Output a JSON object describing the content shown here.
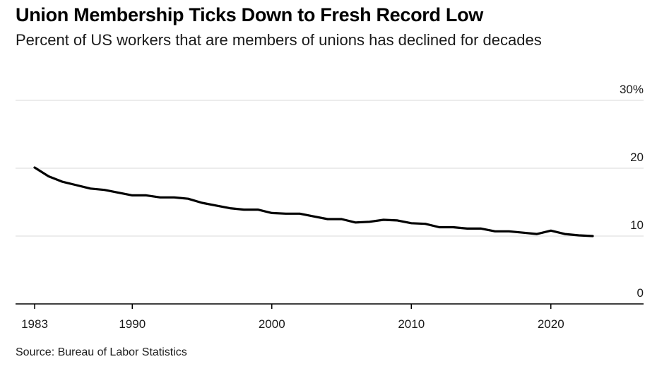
{
  "title": "Union Membership Ticks Down to Fresh Record Low",
  "subtitle": "Percent of US workers that are members of unions has declined for decades",
  "source": "Source: Bureau of Labor Statistics",
  "colors": {
    "line": "#000000",
    "grid": "#d9d9d9",
    "axis": "#000000"
  },
  "chart_data": {
    "type": "line",
    "title": "Union Membership Ticks Down to Fresh Record Low",
    "subtitle": "Percent of US workers that are members of unions has declined for decades",
    "xlabel": "",
    "ylabel": "",
    "xlim": [
      1983,
      2023
    ],
    "ylim": [
      0,
      30
    ],
    "x_ticks": [
      {
        "value": 1983,
        "label": "1983"
      },
      {
        "value": 1990,
        "label": "1990"
      },
      {
        "value": 2000,
        "label": "2000"
      },
      {
        "value": 2010,
        "label": "2010"
      },
      {
        "value": 2020,
        "label": "2020"
      }
    ],
    "y_ticks": [
      {
        "value": 0,
        "label": "0"
      },
      {
        "value": 10,
        "label": "10"
      },
      {
        "value": 20,
        "label": "20"
      },
      {
        "value": 30,
        "label": "30%"
      }
    ],
    "y_axis_position": "right",
    "grid": true,
    "x": [
      1983,
      1984,
      1985,
      1986,
      1987,
      1988,
      1989,
      1990,
      1991,
      1992,
      1993,
      1994,
      1995,
      1996,
      1997,
      1998,
      1999,
      2000,
      2001,
      2002,
      2003,
      2004,
      2005,
      2006,
      2007,
      2008,
      2009,
      2010,
      2011,
      2012,
      2013,
      2014,
      2015,
      2016,
      2017,
      2018,
      2019,
      2020,
      2021,
      2022,
      2023
    ],
    "series": [
      {
        "values": [
          20.1,
          18.8,
          18.0,
          17.5,
          17.0,
          16.8,
          16.4,
          16.0,
          16.0,
          15.7,
          15.7,
          15.5,
          14.9,
          14.5,
          14.1,
          13.9,
          13.9,
          13.4,
          13.3,
          13.3,
          12.9,
          12.5,
          12.5,
          12.0,
          12.1,
          12.4,
          12.3,
          11.9,
          11.8,
          11.3,
          11.3,
          11.1,
          11.1,
          10.7,
          10.7,
          10.5,
          10.3,
          10.8,
          10.3,
          10.1,
          10.0
        ]
      }
    ]
  }
}
